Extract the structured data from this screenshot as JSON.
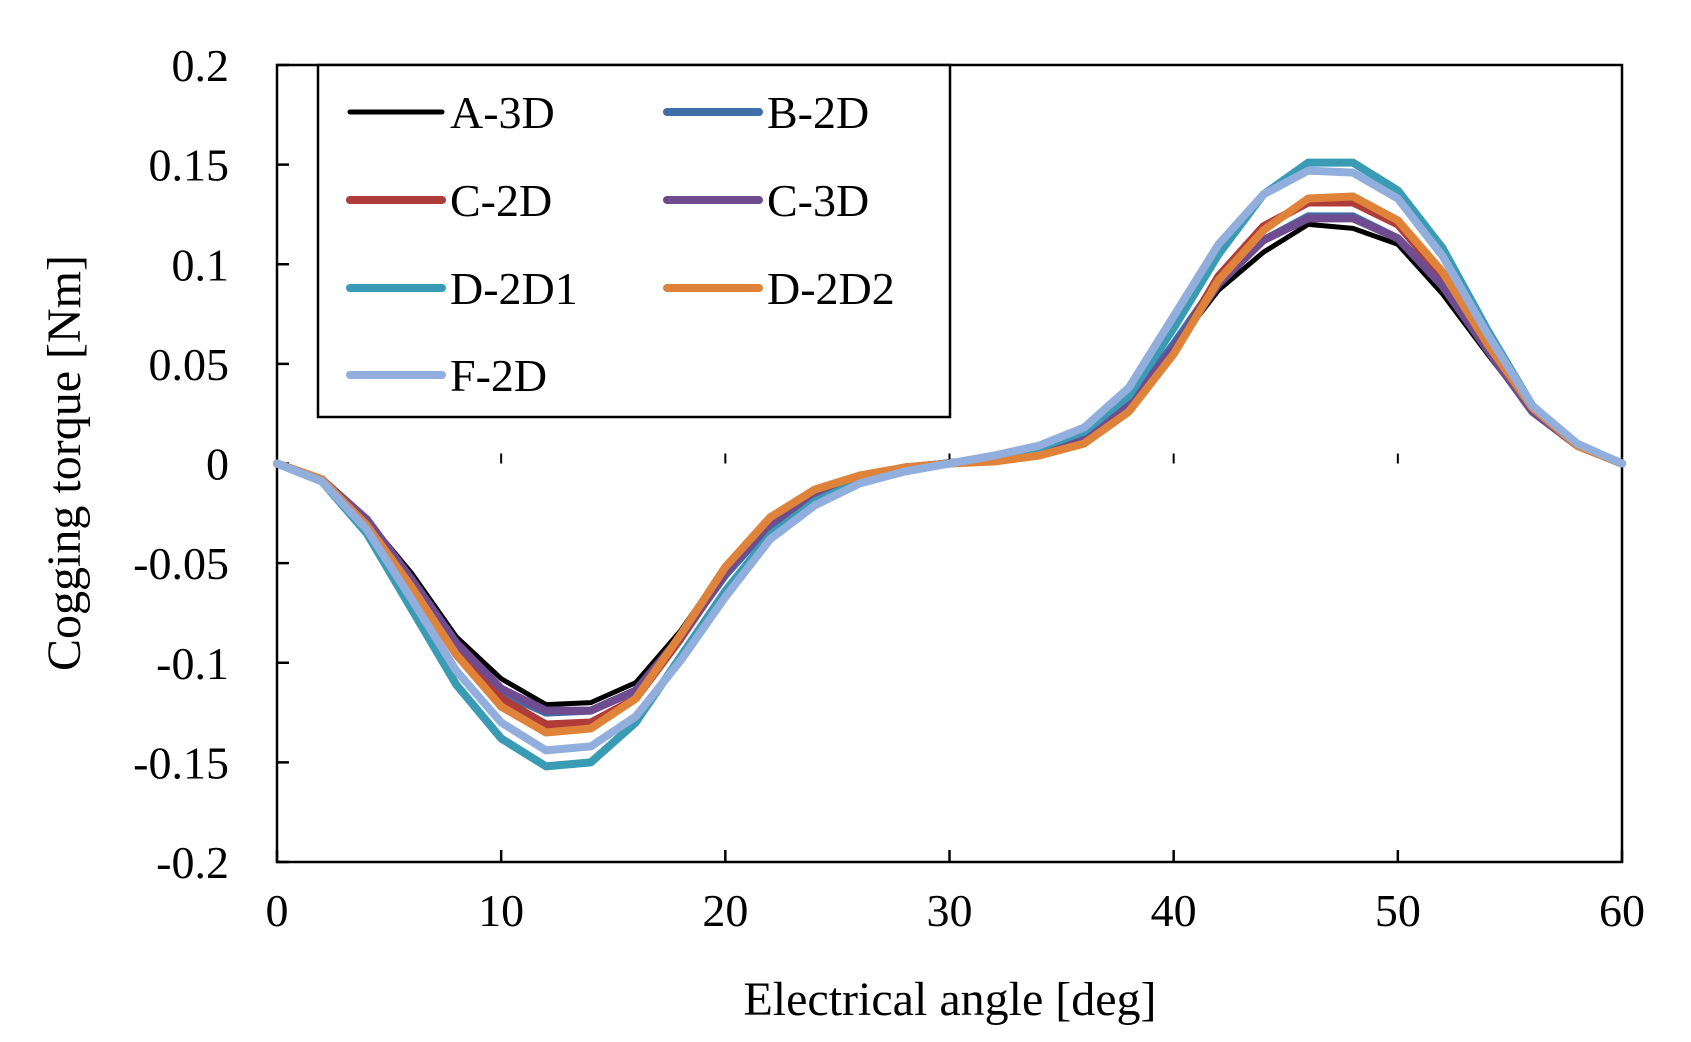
{
  "chart_data": {
    "type": "line",
    "title": "",
    "xlabel": "Electrical angle [deg]",
    "ylabel": "Cogging torque [Nm]",
    "xlim": [
      0,
      60
    ],
    "ylim": [
      -0.2,
      0.2
    ],
    "xticks": [
      0,
      10,
      20,
      30,
      40,
      50,
      60
    ],
    "yticks": [
      -0.2,
      -0.15,
      -0.1,
      -0.05,
      0,
      0.05,
      0.1,
      0.15,
      0.2
    ],
    "xtick_labels": [
      "0",
      "10",
      "20",
      "30",
      "40",
      "50",
      "60"
    ],
    "ytick_labels": [
      "-0.2",
      "-0.15",
      "-0.1",
      "-0.05",
      "0",
      "0.05",
      "0.1",
      "0.15",
      "0.2"
    ],
    "grid": false,
    "legend_position": "top-left",
    "x": [
      0,
      2,
      4,
      6,
      8,
      10,
      12,
      14,
      16,
      18,
      20,
      22,
      24,
      26,
      28,
      30,
      32,
      34,
      36,
      38,
      40,
      42,
      44,
      46,
      48,
      50,
      52,
      54,
      56,
      58,
      60
    ],
    "series": [
      {
        "name": "A-3D",
        "color": "#000000",
        "width": 5,
        "values": [
          0,
          -0.008,
          -0.028,
          -0.055,
          -0.087,
          -0.108,
          -0.121,
          -0.12,
          -0.11,
          -0.084,
          -0.052,
          -0.03,
          -0.016,
          -0.007,
          -0.002,
          0.001,
          0.003,
          0.007,
          0.014,
          0.03,
          0.058,
          0.087,
          0.106,
          0.12,
          0.118,
          0.11,
          0.085,
          0.055,
          0.026,
          0.009,
          0
        ]
      },
      {
        "name": "B-2D",
        "color": "#3E6FA8",
        "width": 8,
        "values": [
          0,
          -0.008,
          -0.03,
          -0.06,
          -0.093,
          -0.115,
          -0.125,
          -0.124,
          -0.114,
          -0.087,
          -0.056,
          -0.031,
          -0.017,
          -0.008,
          -0.002,
          0,
          0.003,
          0.007,
          0.013,
          0.03,
          0.06,
          0.092,
          0.112,
          0.124,
          0.124,
          0.113,
          0.09,
          0.058,
          0.027,
          0.009,
          0
        ]
      },
      {
        "name": "C-2D",
        "color": "#B03C3A",
        "width": 8,
        "values": [
          0,
          -0.008,
          -0.03,
          -0.06,
          -0.093,
          -0.118,
          -0.131,
          -0.13,
          -0.118,
          -0.088,
          -0.055,
          -0.029,
          -0.015,
          -0.007,
          -0.002,
          0,
          0.002,
          0.005,
          0.011,
          0.027,
          0.056,
          0.094,
          0.119,
          0.131,
          0.131,
          0.12,
          0.094,
          0.06,
          0.028,
          0.009,
          0
        ]
      },
      {
        "name": "C-3D",
        "color": "#6E4C8F",
        "width": 8,
        "values": [
          0,
          -0.008,
          -0.028,
          -0.058,
          -0.09,
          -0.113,
          -0.124,
          -0.124,
          -0.114,
          -0.087,
          -0.055,
          -0.03,
          -0.016,
          -0.007,
          -0.002,
          0,
          0.003,
          0.006,
          0.013,
          0.029,
          0.058,
          0.09,
          0.112,
          0.123,
          0.123,
          0.113,
          0.089,
          0.057,
          0.026,
          0.009,
          0
        ]
      },
      {
        "name": "D-2D1",
        "color": "#3A9BB4",
        "width": 8,
        "values": [
          0,
          -0.009,
          -0.035,
          -0.073,
          -0.111,
          -0.138,
          -0.152,
          -0.15,
          -0.13,
          -0.097,
          -0.064,
          -0.036,
          -0.019,
          -0.009,
          -0.003,
          0,
          0.003,
          0.008,
          0.016,
          0.034,
          0.068,
          0.105,
          0.135,
          0.151,
          0.151,
          0.137,
          0.108,
          0.067,
          0.029,
          0.009,
          0
        ]
      },
      {
        "name": "D-2D2",
        "color": "#E0833A",
        "width": 8,
        "values": [
          0,
          -0.008,
          -0.031,
          -0.062,
          -0.096,
          -0.122,
          -0.135,
          -0.133,
          -0.118,
          -0.086,
          -0.052,
          -0.027,
          -0.013,
          -0.006,
          -0.002,
          0,
          0.001,
          0.004,
          0.01,
          0.026,
          0.055,
          0.092,
          0.117,
          0.133,
          0.134,
          0.122,
          0.096,
          0.06,
          0.028,
          0.009,
          0
        ]
      },
      {
        "name": "F-2D",
        "color": "#92AEDD",
        "width": 8,
        "values": [
          0,
          -0.009,
          -0.033,
          -0.068,
          -0.104,
          -0.13,
          -0.144,
          -0.142,
          -0.127,
          -0.099,
          -0.067,
          -0.038,
          -0.021,
          -0.01,
          -0.004,
          0,
          0.004,
          0.009,
          0.018,
          0.038,
          0.074,
          0.11,
          0.135,
          0.147,
          0.146,
          0.133,
          0.104,
          0.065,
          0.029,
          0.01,
          0
        ]
      }
    ]
  }
}
